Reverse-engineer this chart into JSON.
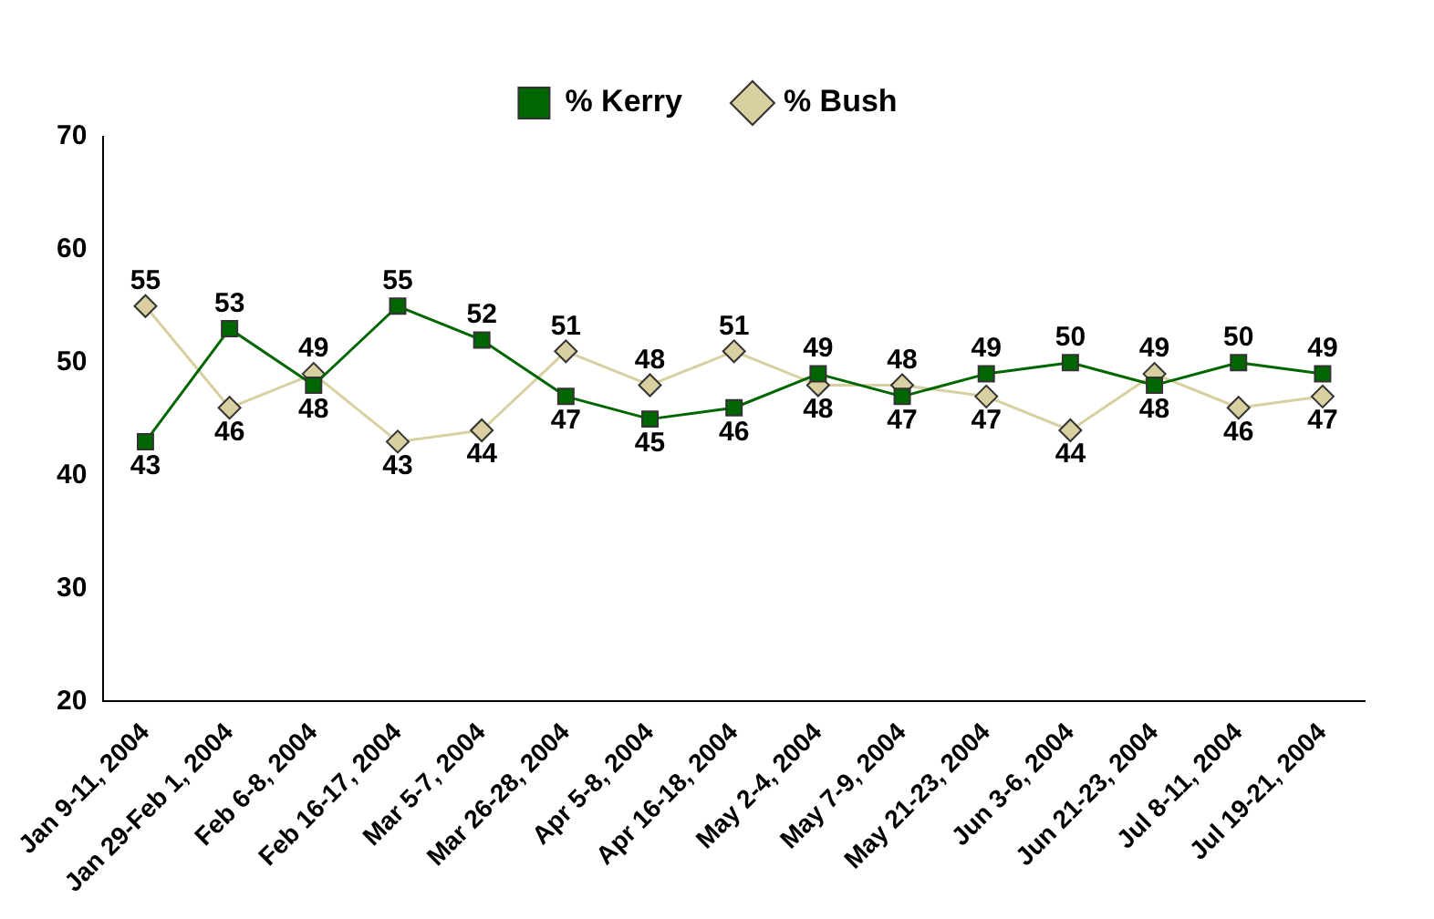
{
  "chart_data": {
    "type": "line",
    "categories": [
      "Jan 9-11, 2004",
      "Jan 29-Feb 1, 2004",
      "Feb 6-8, 2004",
      "Feb 16-17, 2004",
      "Mar 5-7, 2004",
      "Mar 26-28, 2004",
      "Apr 5-8, 2004",
      "Apr 16-18, 2004",
      "May 2-4, 2004",
      "May 7-9, 2004",
      "May 21-23, 2004",
      "Jun 3-6, 2004",
      "Jun 21-23, 2004",
      "Jul 8-11, 2004",
      "Jul 19-21, 2004"
    ],
    "series": [
      {
        "name": "% Kerry",
        "color": "#006600",
        "marker": "square",
        "values": [
          43,
          53,
          48,
          55,
          52,
          47,
          45,
          46,
          49,
          47,
          49,
          50,
          48,
          50,
          49
        ]
      },
      {
        "name": "% Bush",
        "color": "#d8d0a0",
        "marker": "diamond",
        "values": [
          55,
          46,
          49,
          43,
          44,
          51,
          48,
          51,
          48,
          48,
          47,
          44,
          49,
          46,
          47
        ]
      }
    ],
    "ylim": [
      20,
      70
    ],
    "yticks": [
      20,
      30,
      40,
      50,
      60,
      70
    ],
    "grid": false,
    "legend": "top",
    "data_labels": true
  }
}
